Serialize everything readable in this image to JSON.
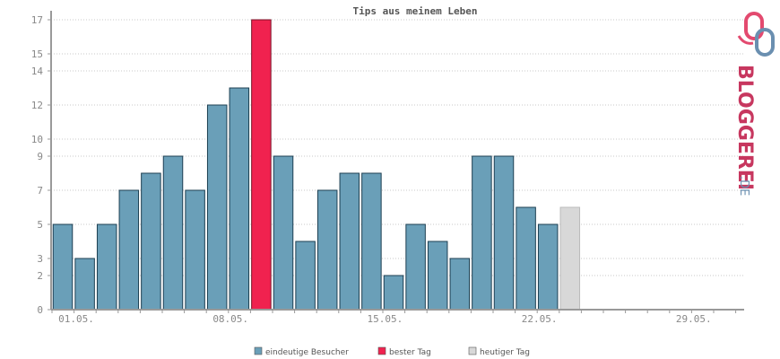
{
  "chart_data": {
    "type": "bar",
    "title": "Tips aus meinem Leben",
    "xlabel": "",
    "ylabel": "",
    "ylim": [
      0,
      17
    ],
    "y_ticks": [
      0,
      2,
      3,
      5,
      7,
      9,
      10,
      12,
      14,
      15,
      17
    ],
    "x_tick_labels": [
      "01.05.",
      "08.05.",
      "15.05.",
      "22.05.",
      "29.05."
    ],
    "days": [
      "01.05.",
      "02.05.",
      "03.05.",
      "04.05.",
      "05.05.",
      "06.05.",
      "07.05.",
      "08.05.",
      "09.05.",
      "10.05.",
      "11.05.",
      "12.05.",
      "13.05.",
      "14.05.",
      "15.05.",
      "16.05.",
      "17.05.",
      "18.05.",
      "19.05.",
      "20.05.",
      "21.05.",
      "22.05.",
      "23.05.",
      "24.05.",
      "25.05.",
      "26.05.",
      "27.05.",
      "28.05.",
      "29.05.",
      "30.05.",
      "31.05."
    ],
    "values": [
      5,
      3,
      5,
      7,
      8,
      9,
      7,
      12,
      13,
      17,
      9,
      4,
      7,
      8,
      8,
      2,
      5,
      4,
      3,
      9,
      9,
      6,
      5,
      6,
      null,
      null,
      null,
      null,
      null,
      null,
      null
    ],
    "best_day_index": 9,
    "today_index": 23,
    "grid": true,
    "legend_position": "bottom-center",
    "legend": [
      {
        "label": "eindeutige Besucher",
        "color": "#6a9fb8"
      },
      {
        "label": "bester Tag",
        "color": "#f0224f"
      },
      {
        "label": "heutiger Tag",
        "color": "#d8d8d8"
      }
    ],
    "colors": {
      "normal": "#6a9fb8",
      "best": "#f0224f",
      "today": "#d8d8d8"
    }
  },
  "brand": {
    "name": "BLOGGEREI",
    "suffix": ".DE"
  }
}
